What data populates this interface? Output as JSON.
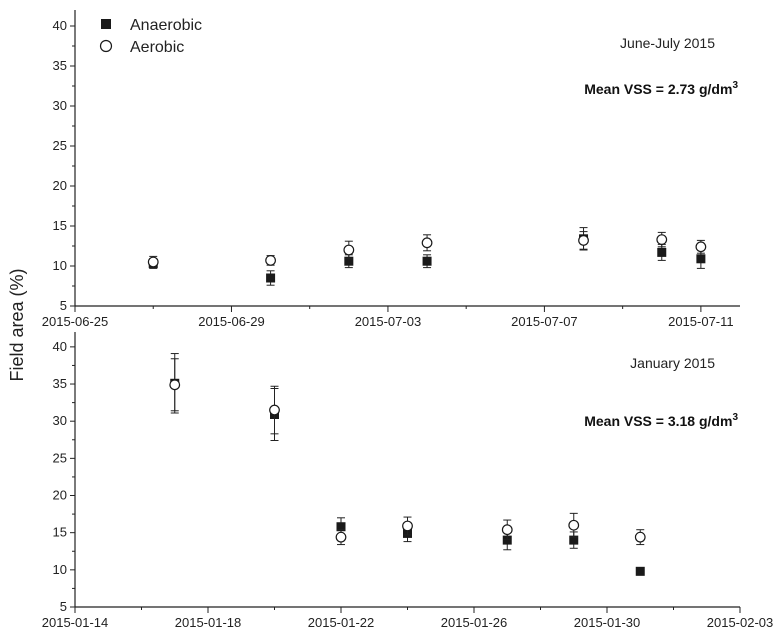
{
  "figure": {
    "ylabel": "Field area (%)",
    "legend": [
      {
        "label": "Anaerobic",
        "marker": "filled-square"
      },
      {
        "label": "Aerobic",
        "marker": "open-circle"
      }
    ]
  },
  "chart_data": [
    {
      "type": "scatter",
      "period_label": "June-July 2015",
      "mean_vss": {
        "text": "Mean VSS = 2.73 g/dm",
        "sup": "3"
      },
      "xlim": [
        "2015-06-25",
        "2015-07-12"
      ],
      "xticks": [
        "2015-06-25",
        "2015-06-29",
        "2015-07-03",
        "2015-07-07",
        "2015-07-11"
      ],
      "ylim": [
        5,
        42
      ],
      "yticks": [
        5,
        10,
        15,
        20,
        25,
        30,
        35,
        40
      ],
      "grid": false,
      "legend_position": "top-left",
      "series": [
        {
          "name": "Anaerobic",
          "x": [
            "2015-06-27",
            "2015-06-30",
            "2015-07-02",
            "2015-07-04",
            "2015-07-08",
            "2015-07-10",
            "2015-07-11"
          ],
          "y": [
            10.3,
            8.5,
            10.6,
            10.6,
            13.4,
            11.7,
            10.9
          ],
          "err": [
            0.6,
            0.9,
            0.8,
            0.8,
            1.4,
            1.0,
            1.2
          ]
        },
        {
          "name": "Aerobic",
          "x": [
            "2015-06-27",
            "2015-06-30",
            "2015-07-02",
            "2015-07-04",
            "2015-07-08",
            "2015-07-10",
            "2015-07-11"
          ],
          "y": [
            10.5,
            10.7,
            12.0,
            12.9,
            13.2,
            13.3,
            12.4
          ],
          "err": [
            0.7,
            0.6,
            1.1,
            1.0,
            1.1,
            0.9,
            0.8
          ]
        }
      ]
    },
    {
      "type": "scatter",
      "period_label": "January 2015",
      "mean_vss": {
        "text": "Mean VSS = 3.18 g/dm",
        "sup": "3"
      },
      "xlim": [
        "2015-01-14",
        "2015-02-03"
      ],
      "xticks": [
        "2015-01-14",
        "2015-01-18",
        "2015-01-22",
        "2015-01-26",
        "2015-01-30",
        "2015-02-03"
      ],
      "ylim": [
        5,
        42
      ],
      "yticks": [
        5,
        10,
        15,
        20,
        25,
        30,
        35,
        40
      ],
      "grid": false,
      "series": [
        {
          "name": "Anaerobic",
          "x": [
            "2015-01-17",
            "2015-01-20",
            "2015-01-22",
            "2015-01-24",
            "2015-01-27",
            "2015-01-29",
            "2015-01-31"
          ],
          "y": [
            35.1,
            30.9,
            15.8,
            14.9,
            14.0,
            14.0,
            9.8
          ],
          "err": [
            4.0,
            3.5,
            1.2,
            1.1,
            1.3,
            1.1,
            0.5
          ]
        },
        {
          "name": "Aerobic",
          "x": [
            "2015-01-17",
            "2015-01-20",
            "2015-01-22",
            "2015-01-24",
            "2015-01-27",
            "2015-01-29",
            "2015-01-31"
          ],
          "y": [
            34.9,
            31.5,
            14.4,
            15.9,
            15.4,
            16.0,
            14.4
          ],
          "err": [
            3.5,
            3.2,
            1.0,
            1.2,
            1.3,
            1.6,
            1.0
          ]
        }
      ]
    }
  ]
}
